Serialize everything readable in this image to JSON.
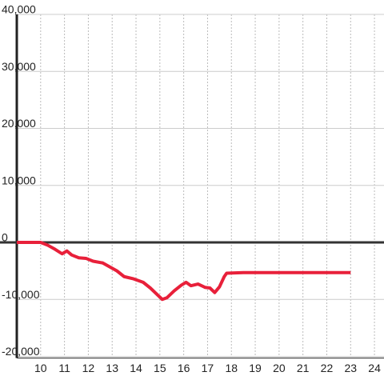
{
  "chart_data": {
    "type": "line",
    "x": [
      9,
      10,
      10.3,
      10.6,
      10.9,
      11.1,
      11.3,
      11.6,
      11.9,
      12.2,
      12.6,
      12.9,
      13.2,
      13.5,
      13.9,
      14.3,
      14.6,
      14.9,
      15.1,
      15.3,
      15.6,
      15.9,
      16.1,
      16.3,
      16.6,
      16.9,
      17.1,
      17.3,
      17.5,
      17.7,
      17.8,
      18.5,
      23
    ],
    "series": [
      {
        "color": "#e8203a",
        "values": [
          0,
          0,
          -500,
          -1200,
          -2000,
          -1500,
          -2200,
          -2700,
          -2800,
          -3300,
          -3600,
          -4300,
          -5000,
          -6000,
          -6400,
          -7000,
          -8000,
          -9200,
          -10000,
          -9700,
          -8500,
          -7500,
          -7000,
          -7600,
          -7300,
          -7900,
          -8000,
          -8800,
          -7800,
          -6000,
          -5400,
          -5300,
          -5300
        ]
      }
    ],
    "xlim": [
      9,
      24.4
    ],
    "ylim": [
      -20000,
      40000
    ],
    "xticks": [
      10,
      11,
      12,
      13,
      14,
      15,
      16,
      17,
      18,
      19,
      20,
      21,
      22,
      23,
      24
    ],
    "yticks": [
      {
        "value": -20000,
        "label": "-20,000"
      },
      {
        "value": -10000,
        "label": "-10,000"
      },
      0,
      {
        "value": 10000,
        "label": "10,000"
      },
      {
        "value": 20000,
        "label": "20,000"
      },
      {
        "value": 30000,
        "label": "30,000"
      },
      {
        "value": 40000,
        "label": "40,000"
      }
    ],
    "grid": true
  }
}
